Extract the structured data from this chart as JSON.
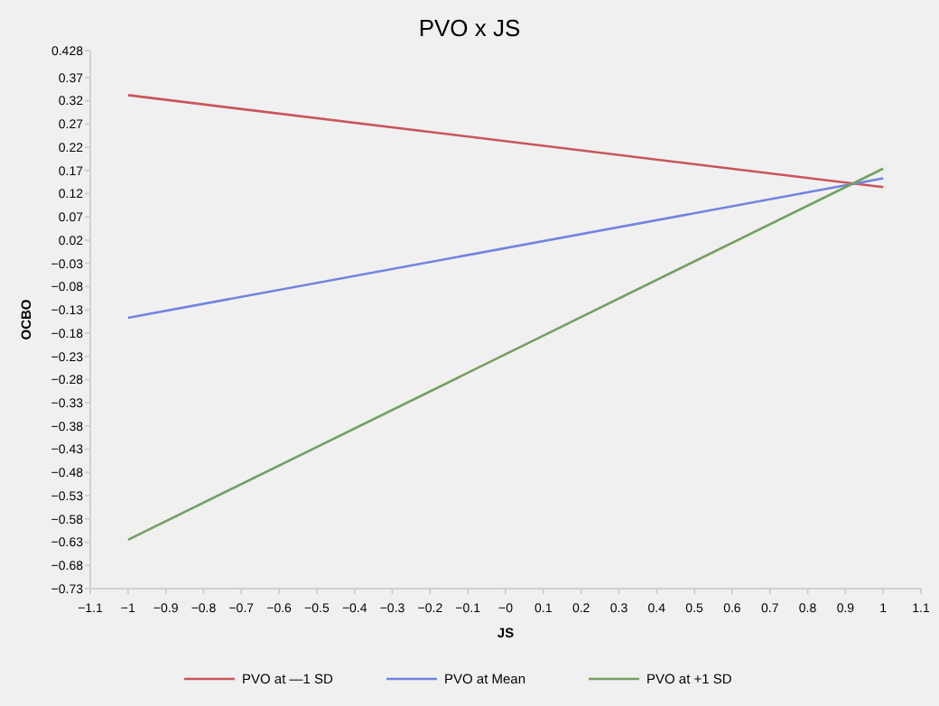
{
  "chart_data": {
    "type": "line",
    "title": "PVO x JS",
    "xlabel": "JS",
    "ylabel": "OCBO",
    "x": [
      -1,
      1
    ],
    "series": [
      {
        "name": "PVO at —1 SD",
        "color": "#c9555a",
        "values": [
          0.332,
          0.134
        ]
      },
      {
        "name": "PVO at Mean",
        "color": "#7282e0",
        "values": [
          -0.147,
          0.153
        ]
      },
      {
        "name": "PVO at +1 SD",
        "color": "#72a062",
        "values": [
          -0.625,
          0.174
        ]
      }
    ],
    "xlim": [
      -1.1,
      1.1
    ],
    "xticks": [
      {
        "value": -1.1,
        "label": "−1.1"
      },
      {
        "value": -1,
        "label": "−1"
      },
      {
        "value": -0.9,
        "label": "−0.9"
      },
      {
        "value": -0.8,
        "label": "−0.8"
      },
      {
        "value": -0.7,
        "label": "−0.7"
      },
      {
        "value": -0.6,
        "label": "−0.6"
      },
      {
        "value": -0.5,
        "label": "−0.5"
      },
      {
        "value": -0.4,
        "label": "−0.4"
      },
      {
        "value": -0.3,
        "label": "−0.3"
      },
      {
        "value": -0.2,
        "label": "−0.2"
      },
      {
        "value": -0.1,
        "label": "−0.1"
      },
      {
        "value": 0,
        "label": "−0"
      },
      0.1,
      0.2,
      0.3,
      0.4,
      0.5,
      0.6,
      0.7,
      0.8,
      0.9,
      1,
      1.1
    ],
    "ylim": [
      -0.73,
      0.428
    ],
    "yticks": [
      {
        "value": -0.73,
        "label": "−0.73"
      },
      {
        "value": -0.68,
        "label": "−0.68"
      },
      {
        "value": -0.63,
        "label": "−0.63"
      },
      {
        "value": -0.58,
        "label": "−0.58"
      },
      {
        "value": -0.53,
        "label": "−0.53"
      },
      {
        "value": -0.48,
        "label": "−0.48"
      },
      {
        "value": -0.43,
        "label": "−0.43"
      },
      {
        "value": -0.38,
        "label": "−0.38"
      },
      {
        "value": -0.33,
        "label": "−0.33"
      },
      {
        "value": -0.28,
        "label": "−0.28"
      },
      {
        "value": -0.23,
        "label": "−0.23"
      },
      {
        "value": -0.18,
        "label": "−0.18"
      },
      {
        "value": -0.13,
        "label": "−0.13"
      },
      {
        "value": -0.08,
        "label": "−0.08"
      },
      {
        "value": -0.03,
        "label": "−0.03"
      },
      0.02,
      0.07,
      0.12,
      0.17,
      0.22,
      0.27,
      0.32,
      0.37,
      0.428
    ],
    "grid": false,
    "legend": "bottom",
    "marker": "none",
    "line_style": "solid"
  }
}
